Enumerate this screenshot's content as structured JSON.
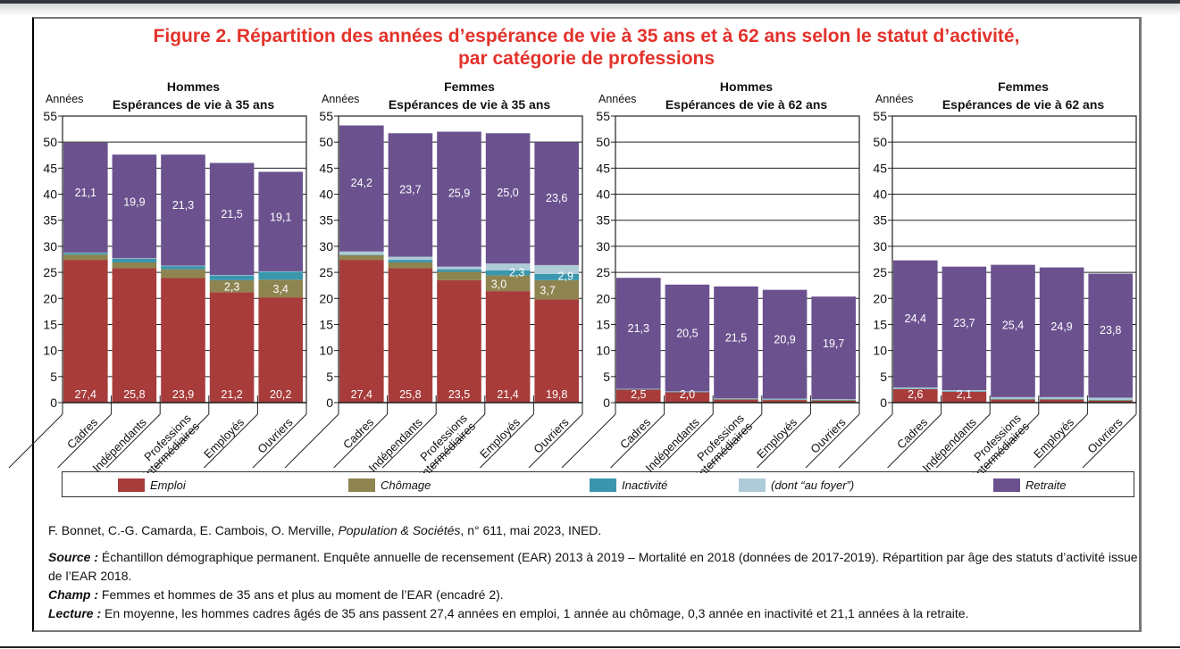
{
  "title_line1": "Figure 2. Répartition des années d’espérance de vie à 35 ans et à 62 ans selon le statut d’activité,",
  "title_line2": "par catégorie de professions",
  "colors": {
    "title": "#e3322b",
    "emploi": "#a83c3b",
    "chomage": "#8e8450",
    "inactivite": "#3a96ad",
    "au_foyer": "#aecbd8",
    "retraite": "#6b528f",
    "label_text": "#ffffff"
  },
  "legend": [
    {
      "key": "emploi",
      "label": "Emploi"
    },
    {
      "key": "chomage",
      "label": "Chômage"
    },
    {
      "key": "inactivite",
      "label": "Inactivité"
    },
    {
      "key": "au_foyer",
      "label": "(dont “au foyer”)"
    },
    {
      "key": "retraite",
      "label": "Retraite"
    }
  ],
  "chart_data": [
    {
      "type": "bar",
      "stacked": true,
      "title_line1": "Hommes",
      "title_line2": "Espérances de vie à 35 ans",
      "ylabel": "Années",
      "ylim": [
        0,
        55
      ],
      "yticks": [
        0,
        5,
        10,
        15,
        20,
        25,
        30,
        35,
        40,
        45,
        50,
        55
      ],
      "gridlines": [
        50
      ],
      "categories": [
        "Cadres",
        "Indépendants",
        "Professions intermédiaires",
        "Employés",
        "Ouvriers"
      ],
      "series": [
        {
          "name": "Emploi",
          "key": "emploi",
          "values": [
            27.4,
            25.8,
            23.9,
            21.2,
            20.2
          ],
          "labels": [
            "27,4",
            "25,8",
            "23,9",
            "21,2",
            "20,2"
          ]
        },
        {
          "name": "Chômage",
          "key": "chomage",
          "values": [
            1.0,
            1.1,
            1.7,
            2.3,
            3.4
          ],
          "labels": [
            "",
            "",
            "",
            "2,3",
            "3,4"
          ]
        },
        {
          "name": "Inactivité",
          "key": "inactivite",
          "values": [
            0.3,
            0.7,
            0.6,
            0.9,
            1.5
          ],
          "labels": [
            "",
            "",
            "",
            "",
            ""
          ]
        },
        {
          "name": "dont au foyer",
          "key": "au_foyer",
          "values": [
            0.1,
            0.1,
            0.1,
            0.1,
            0.1
          ],
          "labels": [
            "",
            "",
            "",
            "",
            ""
          ]
        },
        {
          "name": "Retraite",
          "key": "retraite",
          "values": [
            21.1,
            19.9,
            21.3,
            21.5,
            19.1
          ],
          "labels": [
            "21,1",
            "19,9",
            "21,3",
            "21,5",
            "19,1"
          ]
        }
      ]
    },
    {
      "type": "bar",
      "stacked": true,
      "title_line1": "Femmes",
      "title_line2": "Espérances de vie à 35 ans",
      "ylabel": "Années",
      "ylim": [
        0,
        55
      ],
      "yticks": [
        0,
        5,
        10,
        15,
        20,
        25,
        30,
        35,
        40,
        45,
        50,
        55
      ],
      "gridlines": [
        50
      ],
      "categories": [
        "Cadres",
        "Indépendants",
        "Professions intermédiaires",
        "Employés",
        "Ouvriers"
      ],
      "series": [
        {
          "name": "Emploi",
          "key": "emploi",
          "values": [
            27.4,
            25.8,
            23.5,
            21.4,
            19.8
          ],
          "labels": [
            "27,4",
            "25,8",
            "23,5",
            "21,4",
            "19,8"
          ]
        },
        {
          "name": "Chômage",
          "key": "chomage",
          "values": [
            0.9,
            1.1,
            1.6,
            3.0,
            3.7
          ],
          "labels": [
            "",
            "",
            "",
            "3,0",
            "3,7"
          ]
        },
        {
          "name": "Inactivité",
          "key": "inactivite",
          "values": [
            0.1,
            0.5,
            0.5,
            1.0,
            1.2
          ],
          "labels": [
            "",
            "",
            "",
            "",
            ""
          ]
        },
        {
          "name": "dont au foyer",
          "key": "au_foyer",
          "values": [
            0.6,
            0.6,
            0.5,
            1.3,
            1.7
          ],
          "labels": [
            "",
            "",
            "",
            "2,3",
            "2,9"
          ]
        },
        {
          "name": "Retraite",
          "key": "retraite",
          "values": [
            24.2,
            23.7,
            25.9,
            25.0,
            23.6
          ],
          "labels": [
            "24,2",
            "23,7",
            "25,9",
            "25,0",
            "23,6"
          ]
        }
      ]
    },
    {
      "type": "bar",
      "stacked": true,
      "title_line1": "Hommes",
      "title_line2": "Espérances de vie à 62 ans",
      "ylabel": "Années",
      "ylim": [
        0,
        55
      ],
      "yticks": [
        0,
        5,
        10,
        15,
        20,
        25,
        30,
        35,
        40,
        45,
        50,
        55
      ],
      "gridlines": [
        50,
        45,
        40,
        35,
        30,
        25
      ],
      "categories": [
        "Cadres",
        "Indépendants",
        "Professions intermédiaires",
        "Employés",
        "Ouvriers"
      ],
      "series": [
        {
          "name": "Emploi",
          "key": "emploi",
          "values": [
            2.5,
            2.0,
            0.6,
            0.5,
            0.4
          ],
          "labels": [
            "2,5",
            "2,0",
            "",
            "",
            ""
          ]
        },
        {
          "name": "Chômage",
          "key": "chomage",
          "values": [
            0.0,
            0.0,
            0.05,
            0.05,
            0.05
          ],
          "labels": [
            "",
            "",
            "",
            "",
            ""
          ]
        },
        {
          "name": "Inactivité",
          "key": "inactivite",
          "values": [
            0.1,
            0.1,
            0.1,
            0.1,
            0.1
          ],
          "labels": [
            "",
            "",
            "",
            "",
            ""
          ]
        },
        {
          "name": "dont au foyer",
          "key": "au_foyer",
          "values": [
            0.05,
            0.05,
            0.05,
            0.1,
            0.1
          ],
          "labels": [
            "",
            "",
            "",
            "",
            ""
          ]
        },
        {
          "name": "Retraite",
          "key": "retraite",
          "values": [
            21.3,
            20.5,
            21.5,
            20.9,
            19.7
          ],
          "labels": [
            "21,3",
            "20,5",
            "21,5",
            "20,9",
            "19,7"
          ]
        }
      ]
    },
    {
      "type": "bar",
      "stacked": true,
      "title_line1": "Femmes",
      "title_line2": "Espérances de vie à 62 ans",
      "ylabel": "Années",
      "ylim": [
        0,
        55
      ],
      "yticks": [
        0,
        5,
        10,
        15,
        20,
        25,
        30,
        35,
        40,
        45,
        50,
        55
      ],
      "gridlines": [
        50,
        45,
        40,
        35,
        30,
        25
      ],
      "categories": [
        "Cadres",
        "Indépendants",
        "Professions intermédiaires",
        "Employés",
        "Ouvriers"
      ],
      "series": [
        {
          "name": "Emploi",
          "key": "emploi",
          "values": [
            2.6,
            2.1,
            0.6,
            0.6,
            0.4
          ],
          "labels": [
            "2,6",
            "2,1",
            "",
            "",
            ""
          ]
        },
        {
          "name": "Chômage",
          "key": "chomage",
          "values": [
            0.0,
            0.0,
            0.05,
            0.05,
            0.05
          ],
          "labels": [
            "",
            "",
            "",
            "",
            ""
          ]
        },
        {
          "name": "Inactivité",
          "key": "inactivite",
          "values": [
            0.1,
            0.1,
            0.1,
            0.1,
            0.1
          ],
          "labels": [
            "",
            "",
            "",
            "",
            ""
          ]
        },
        {
          "name": "dont au foyer",
          "key": "au_foyer",
          "values": [
            0.2,
            0.2,
            0.3,
            0.3,
            0.4
          ],
          "labels": [
            "",
            "",
            "",
            "",
            ""
          ]
        },
        {
          "name": "Retraite",
          "key": "retraite",
          "values": [
            24.4,
            23.7,
            25.4,
            24.9,
            23.8
          ],
          "labels": [
            "24,4",
            "23,7",
            "25,4",
            "24,9",
            "23,8"
          ]
        }
      ]
    }
  ],
  "footer": {
    "citation_authors": "F. Bonnet, C.-G. Camarda, E. Cambois, O. Merville, ",
    "citation_journal": "Population & Sociétés",
    "citation_rest": ", n° 611, mai 2023, INED.",
    "source_label": "Source :",
    "source_text": " Échantillon démographique permanent. Enquête annuelle de recensement (EAR) 2013 à 2019 – Mortalité en 2018 (données de 2017-2019). Répartition par âge des statuts d’activité issue de l’EAR 2018.",
    "champ_label": "Champ :",
    "champ_text": " Femmes et hommes de 35 ans et plus au moment de l’EAR (encadré 2).",
    "lecture_label": "Lecture :",
    "lecture_text": " En moyenne, les hommes cadres âgés de 35 ans passent 27,4 années en emploi, 1 année au chômage, 0,3 année en inactivité et 21,1 années à la retraite."
  }
}
